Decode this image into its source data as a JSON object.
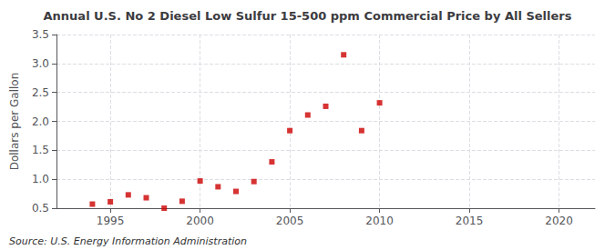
{
  "chart_data": {
    "type": "scatter",
    "title": "Annual U.S. No 2 Diesel Low Sulfur 15-500 ppm Commercial Price by All Sellers",
    "ylabel": "Dollars per Gallon",
    "annotation": "Source: U.S. Energy Information Administration",
    "x": [
      1994,
      1995,
      1996,
      1997,
      1998,
      1999,
      2000,
      2001,
      2002,
      2003,
      2004,
      2005,
      2006,
      2007,
      2008,
      2009,
      2010
    ],
    "values": [
      0.57,
      0.61,
      0.73,
      0.68,
      0.5,
      0.62,
      0.97,
      0.87,
      0.79,
      0.96,
      1.3,
      1.84,
      2.11,
      2.26,
      3.15,
      1.84,
      2.32
    ],
    "color": "#cc0000",
    "marker": "square",
    "xlim": [
      1992,
      2022
    ],
    "ylim": [
      0.5,
      3.5
    ],
    "xticks": [
      1995,
      2000,
      2005,
      2010,
      2015,
      2020
    ],
    "yticks": [
      0.5,
      {
        "value": 1.0,
        "label": "1.0"
      },
      1.5,
      {
        "value": 2.0,
        "label": "2.0"
      },
      2.5,
      {
        "value": 3.0,
        "label": "3.0"
      },
      3.5
    ],
    "grid": true
  }
}
